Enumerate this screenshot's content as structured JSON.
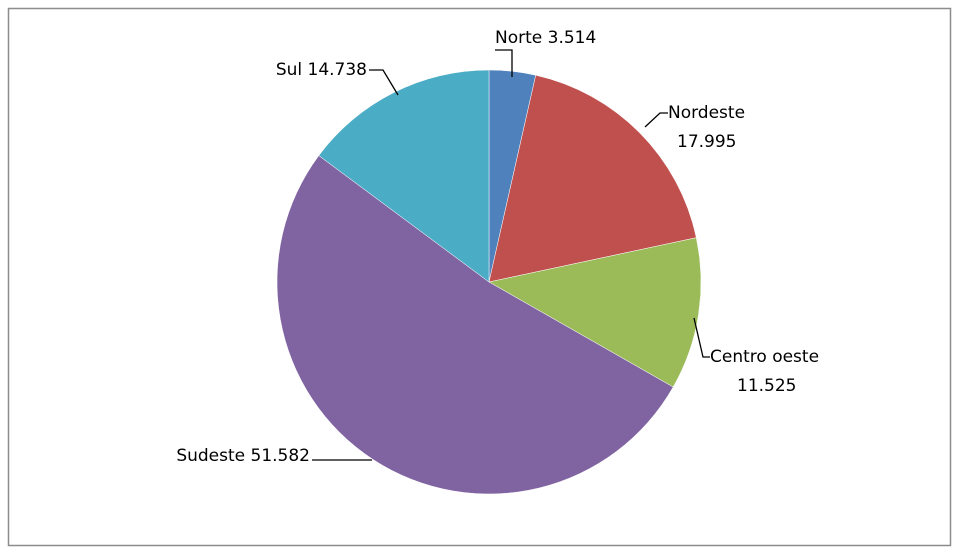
{
  "chart_data": {
    "type": "pie",
    "categories": [
      "Norte",
      "Nordeste",
      "Centro oeste",
      "Sudeste",
      "Sul"
    ],
    "values": [
      3.514,
      17.995,
      11.525,
      51.582,
      14.738
    ],
    "colors": [
      "#4f81bd",
      "#c0504d",
      "#9bbb59",
      "#8064a2",
      "#4bacc6"
    ]
  }
}
